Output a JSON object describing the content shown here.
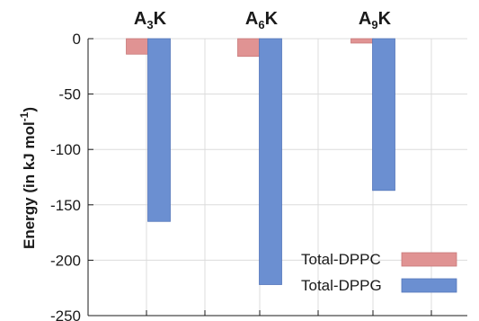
{
  "chart_data": {
    "type": "bar",
    "categories": [
      "A3K",
      "A6K",
      "A9K"
    ],
    "category_labels": [
      {
        "base": "A",
        "sub": "3",
        "suffix": "K"
      },
      {
        "base": "A",
        "sub": "6",
        "suffix": "K"
      },
      {
        "base": "A",
        "sub": "9",
        "suffix": "K"
      }
    ],
    "series": [
      {
        "name": "Total-DPPC",
        "values": [
          -14,
          -16,
          -4
        ],
        "color": "#e09393"
      },
      {
        "name": "Total-DPPG",
        "values": [
          -165,
          -222,
          -137
        ],
        "color": "#6b8fd1"
      }
    ],
    "ylabel": "Energy (in kJ mol",
    "ylabel_sup": "-1",
    "ylabel_close": ")",
    "ylim": [
      -250,
      0
    ],
    "yticks": [
      0,
      -50,
      -100,
      -150,
      -200,
      -250
    ],
    "ytick_labels": [
      "0",
      "-50",
      "-100",
      "-150",
      "-200",
      "-250"
    ],
    "grid": true,
    "legend_position": "bottom-right"
  }
}
